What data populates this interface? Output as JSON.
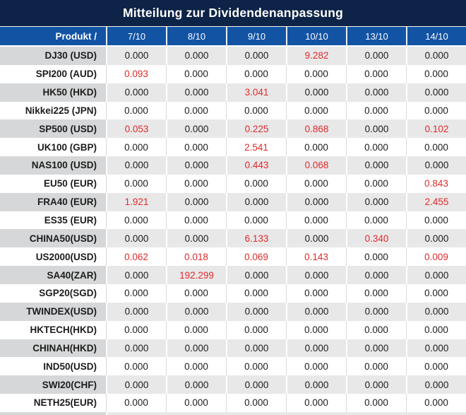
{
  "title": "Mitteilung zur Dividendenanpassung",
  "chart_data": {
    "type": "table",
    "title": "Mitteilung zur Dividendenanpassung",
    "product_column_header": "Produkt /",
    "date_column_headers": [
      "7/10",
      "8/10",
      "9/10",
      "10/10",
      "13/10",
      "14/10"
    ],
    "rows": [
      {
        "product": "DJ30 (USD)",
        "values": [
          "0.000",
          "0.000",
          "0.000",
          "9.282",
          "0.000",
          "0.000"
        ],
        "red_value_indices": [
          3
        ]
      },
      {
        "product": "SPI200 (AUD)",
        "values": [
          "0.093",
          "0.000",
          "0.000",
          "0.000",
          "0.000",
          "0.000"
        ],
        "red_value_indices": [
          0
        ]
      },
      {
        "product": "HK50 (HKD)",
        "values": [
          "0.000",
          "0.000",
          "3.041",
          "0.000",
          "0.000",
          "0.000"
        ],
        "red_value_indices": [
          2
        ]
      },
      {
        "product": "Nikkei225 (JPN)",
        "values": [
          "0.000",
          "0.000",
          "0.000",
          "0.000",
          "0.000",
          "0.000"
        ],
        "red_value_indices": []
      },
      {
        "product": "SP500 (USD)",
        "values": [
          "0.053",
          "0.000",
          "0.225",
          "0.868",
          "0.000",
          "0.102"
        ],
        "red_value_indices": [
          0,
          2,
          3,
          5
        ]
      },
      {
        "product": "UK100 (GBP)",
        "values": [
          "0.000",
          "0.000",
          "2.541",
          "0.000",
          "0.000",
          "0.000"
        ],
        "red_value_indices": [
          2
        ]
      },
      {
        "product": "NAS100 (USD)",
        "values": [
          "0.000",
          "0.000",
          "0.443",
          "0.068",
          "0.000",
          "0.000"
        ],
        "red_value_indices": [
          2,
          3
        ]
      },
      {
        "product": "EU50 (EUR)",
        "values": [
          "0.000",
          "0.000",
          "0.000",
          "0.000",
          "0.000",
          "0.843"
        ],
        "red_value_indices": [
          5
        ]
      },
      {
        "product": "FRA40 (EUR)",
        "values": [
          "1.921",
          "0.000",
          "0.000",
          "0.000",
          "0.000",
          "2.455"
        ],
        "red_value_indices": [
          0,
          5
        ]
      },
      {
        "product": "ES35 (EUR)",
        "values": [
          "0.000",
          "0.000",
          "0.000",
          "0.000",
          "0.000",
          "0.000"
        ],
        "red_value_indices": []
      },
      {
        "product": "CHINA50(USD)",
        "values": [
          "0.000",
          "0.000",
          "6.133",
          "0.000",
          "0.340",
          "0.000"
        ],
        "red_value_indices": [
          2,
          4
        ]
      },
      {
        "product": "US2000(USD)",
        "values": [
          "0.062",
          "0.018",
          "0.069",
          "0.143",
          "0.000",
          "0.009"
        ],
        "red_value_indices": [
          0,
          1,
          2,
          3,
          5
        ]
      },
      {
        "product": "SA40(ZAR)",
        "values": [
          "0.000",
          "192.299",
          "0.000",
          "0.000",
          "0.000",
          "0.000"
        ],
        "red_value_indices": [
          1
        ]
      },
      {
        "product": "SGP20(SGD)",
        "values": [
          "0.000",
          "0.000",
          "0.000",
          "0.000",
          "0.000",
          "0.000"
        ],
        "red_value_indices": []
      },
      {
        "product": "TWINDEX(USD)",
        "values": [
          "0.000",
          "0.000",
          "0.000",
          "0.000",
          "0.000",
          "0.000"
        ],
        "red_value_indices": []
      },
      {
        "product": "HKTECH(HKD)",
        "values": [
          "0.000",
          "0.000",
          "0.000",
          "0.000",
          "0.000",
          "0.000"
        ],
        "red_value_indices": []
      },
      {
        "product": "CHINAH(HKD)",
        "values": [
          "0.000",
          "0.000",
          "0.000",
          "0.000",
          "0.000",
          "0.000"
        ],
        "red_value_indices": []
      },
      {
        "product": "IND50(USD)",
        "values": [
          "0.000",
          "0.000",
          "0.000",
          "0.000",
          "0.000",
          "0.000"
        ],
        "red_value_indices": []
      },
      {
        "product": "SWI20(CHF)",
        "values": [
          "0.000",
          "0.000",
          "0.000",
          "0.000",
          "0.000",
          "0.000"
        ],
        "red_value_indices": []
      },
      {
        "product": "NETH25(EUR)",
        "values": [
          "0.000",
          "0.000",
          "0.000",
          "0.000",
          "0.000",
          "0.000"
        ],
        "red_value_indices": []
      }
    ]
  },
  "colors": {
    "title_bar_bg": "#0d2347",
    "header_row_bg": "#1253a4",
    "header_text": "#ffffff",
    "row_gray_product_bg": "#d6d7d8",
    "row_gray_value_bg": "#e8e8e9",
    "row_white_bg": "#ffffff",
    "value_text": "#1c1c1c",
    "highlight_red": "#e22a2a",
    "separator_light": "#d9d9d9"
  }
}
